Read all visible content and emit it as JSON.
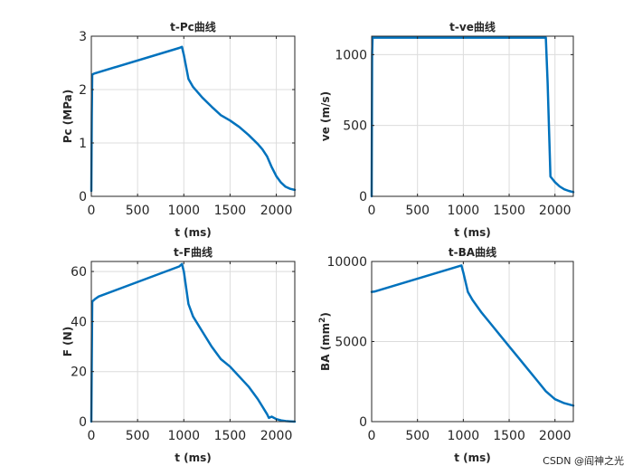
{
  "chart_data": [
    {
      "type": "line",
      "title": "t-Pc曲线",
      "xlabel": "t (ms)",
      "ylabel": "Pc (MPa)",
      "xlim": [
        0,
        2200
      ],
      "ylim": [
        0,
        3
      ],
      "xticks": [
        0,
        500,
        1000,
        1500,
        2000
      ],
      "xtick_labels": [
        "0",
        "500",
        "1000",
        "1500",
        "2000"
      ],
      "yticks": [
        0,
        1,
        2,
        3
      ],
      "ytick_labels": [
        "0",
        "1",
        "2",
        "3"
      ],
      "grid": true,
      "series": [
        {
          "name": "Pc",
          "x": [
            0,
            5,
            10,
            30,
            950,
            980,
            1000,
            1050,
            1100,
            1200,
            1300,
            1400,
            1500,
            1600,
            1700,
            1800,
            1850,
            1900,
            1950,
            2000,
            2050,
            2100,
            2150,
            2200
          ],
          "y": [
            0.1,
            1.5,
            2.28,
            2.3,
            2.78,
            2.8,
            2.65,
            2.2,
            2.05,
            1.85,
            1.68,
            1.52,
            1.42,
            1.3,
            1.15,
            0.98,
            0.88,
            0.75,
            0.55,
            0.38,
            0.26,
            0.18,
            0.14,
            0.12
          ]
        }
      ]
    },
    {
      "type": "line",
      "title": "t-ve曲线",
      "xlabel": "t (ms)",
      "ylabel": "ve (m/s)",
      "xlim": [
        0,
        2200
      ],
      "ylim": [
        0,
        1130
      ],
      "xticks": [
        0,
        500,
        1000,
        1500,
        2000
      ],
      "xtick_labels": [
        "0",
        "500",
        "1000",
        "1500",
        "2000"
      ],
      "yticks": [
        0,
        500,
        1000
      ],
      "ytick_labels": [
        "0",
        "500",
        "1000"
      ],
      "grid": true,
      "series": [
        {
          "name": "ve",
          "x": [
            0,
            5,
            10,
            1900,
            1920,
            1950,
            2000,
            2050,
            2100,
            2150,
            2200
          ],
          "y": [
            0,
            1000,
            1120,
            1120,
            800,
            140,
            100,
            70,
            50,
            38,
            30
          ]
        }
      ]
    },
    {
      "type": "line",
      "title": "t-F曲线",
      "xlabel": "t (ms)",
      "ylabel": "F (N)",
      "xlim": [
        0,
        2200
      ],
      "ylim": [
        0,
        64
      ],
      "xticks": [
        0,
        500,
        1000,
        1500,
        2000
      ],
      "xtick_labels": [
        "0",
        "500",
        "1000",
        "1500",
        "2000"
      ],
      "yticks": [
        0,
        20,
        40,
        60
      ],
      "ytick_labels": [
        "0",
        "20",
        "40",
        "60"
      ],
      "grid": true,
      "series": [
        {
          "name": "F",
          "x": [
            0,
            5,
            10,
            40,
            80,
            950,
            980,
            1000,
            1050,
            1100,
            1200,
            1300,
            1400,
            1500,
            1600,
            1700,
            1800,
            1850,
            1900,
            1920,
            1950,
            2000,
            2050,
            2100,
            2150,
            2200
          ],
          "y": [
            0,
            25,
            48,
            49,
            50,
            62,
            63,
            60,
            47,
            42,
            36,
            30,
            25,
            22,
            18,
            14,
            9,
            6,
            3,
            1.5,
            2,
            1,
            0.5,
            0.2,
            0.1,
            0
          ]
        }
      ]
    },
    {
      "type": "line",
      "title": "t-BA曲线",
      "xlabel": "t (ms)",
      "ylabel": "BA (mm",
      "ylabel_superscript": "2",
      "ylabel_suffix": ")",
      "xlim": [
        0,
        2200
      ],
      "ylim": [
        0,
        10000
      ],
      "xticks": [
        0,
        500,
        1000,
        1500,
        2000
      ],
      "xtick_labels": [
        "0",
        "500",
        "1000",
        "1500",
        "2000"
      ],
      "yticks": [
        0,
        5000,
        10000
      ],
      "ytick_labels": [
        "0",
        "5000",
        "10000"
      ],
      "grid": true,
      "series": [
        {
          "name": "BA",
          "x": [
            0,
            30,
            950,
            980,
            1000,
            1050,
            1100,
            1200,
            1300,
            1400,
            1500,
            1600,
            1700,
            1800,
            1900,
            2000,
            2100,
            2200
          ],
          "y": [
            8100,
            8120,
            9700,
            9750,
            9300,
            8100,
            7600,
            6800,
            6100,
            5400,
            4700,
            4000,
            3300,
            2600,
            1900,
            1400,
            1150,
            1000
          ]
        }
      ]
    }
  ],
  "watermark": "CSDN @阎神之光"
}
